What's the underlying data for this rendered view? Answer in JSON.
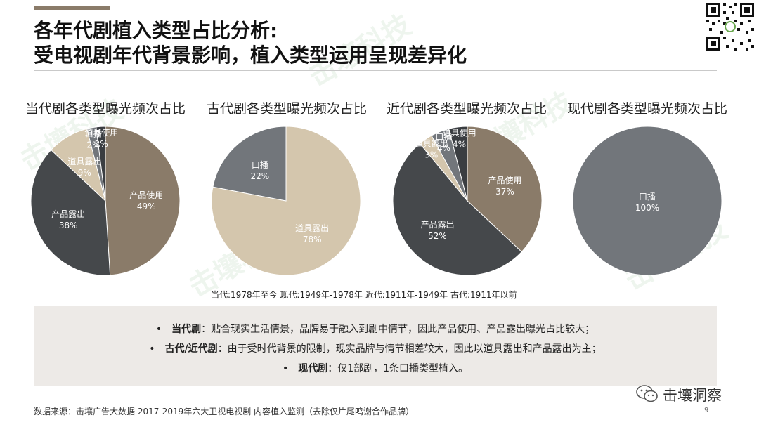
{
  "header": {
    "title_line1": "各年代剧植入类型占比分析:",
    "title_line2": "受电视剧年代背景影响，植入类型运用呈现差异化"
  },
  "colors": {
    "产品使用": "#8a7b69",
    "产品露出": "#45484b",
    "道具露出": "#d4c6ad",
    "口播": "#72767b",
    "道具使用": "#3a3d41",
    "accent": "#8a7b69"
  },
  "chart_data": [
    {
      "type": "pie",
      "title": "当代剧各类型曝光频次占比",
      "slices": [
        {
          "label": "产品使用",
          "value": 49,
          "text": "49%"
        },
        {
          "label": "产品露出",
          "value": 38,
          "text": "38%"
        },
        {
          "label": "道具露出",
          "value": 9,
          "text": "9%"
        },
        {
          "label": "口播",
          "value": 2,
          "text": "2%"
        },
        {
          "label": "道具使用",
          "value": 2,
          "text": "2%"
        }
      ]
    },
    {
      "type": "pie",
      "title": "古代剧各类型曝光频次占比",
      "slices": [
        {
          "label": "道具露出",
          "value": 78,
          "text": "78%"
        },
        {
          "label": "口播",
          "value": 22,
          "text": "22%"
        }
      ]
    },
    {
      "type": "pie",
      "title": "近代剧各类型曝光频次占比",
      "slices": [
        {
          "label": "产品使用",
          "value": 37,
          "text": "37%"
        },
        {
          "label": "产品露出",
          "value": 52,
          "text": "52%"
        },
        {
          "label": "道具露出",
          "value": 3,
          "text": "3%"
        },
        {
          "label": "口播",
          "value": 4,
          "text": "4%"
        },
        {
          "label": "道具使用",
          "value": 4,
          "text": "4%"
        }
      ]
    },
    {
      "type": "pie",
      "title": "现代剧各类型曝光频次占比",
      "slices": [
        {
          "label": "口播",
          "value": 100,
          "text": "100%"
        }
      ]
    }
  ],
  "legend_note": "当代:1978年至今  现代:1949年-1978年  近代:1911年-1949年  古代:1911年以前",
  "summary": [
    {
      "bullet": "•",
      "term": "当代剧",
      "text": "：贴合现实生活情景，品牌易于融入到剧中情节，因此产品使用、产品露出曝光占比较大；"
    },
    {
      "bullet": "•",
      "term": "古代/近代剧",
      "text": "：由于受时代背景的限制，现实品牌与情节相差较大，因此以道具露出和产品露出为主；"
    },
    {
      "bullet": "•",
      "term": "现代剧",
      "text": "：仅1部剧，1条口播类型植入。"
    }
  ],
  "footer": {
    "source": "数据来源：击壤广告大数据  2017-2019年六大卫视电视剧 内容植入监测（去除仅片尾鸣谢合作品牌）",
    "page_number": "9",
    "wechat_label": "击壤洞察"
  },
  "watermark": "击壤科技"
}
